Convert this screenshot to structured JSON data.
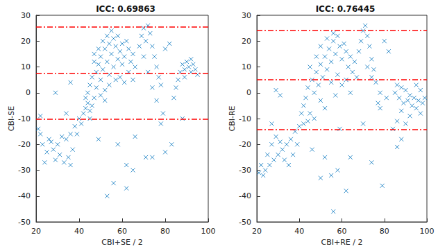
{
  "chart_data": [
    {
      "type": "scatter",
      "title": "ICC: 0.69863",
      "x_label": "CBI+SE / 2",
      "y_label": "CBI-SE",
      "xlim": [
        20,
        100
      ],
      "ylim": [
        -50,
        30
      ],
      "xticks": [
        20,
        40,
        60,
        80,
        100
      ],
      "yticks": [
        -50,
        -40,
        -30,
        -20,
        -10,
        0,
        10,
        20,
        30
      ],
      "grid": false,
      "color": "#0072bd",
      "marker": "x",
      "reference_lines": {
        "values": [
          25.5,
          7.6,
          -10.2
        ],
        "color": "#ff0000",
        "line_style": "dashdot"
      },
      "points": [
        [
          44,
          0
        ],
        [
          45,
          3
        ],
        [
          46,
          6
        ],
        [
          47,
          -2
        ],
        [
          48,
          8
        ],
        [
          48,
          2
        ],
        [
          49,
          11
        ],
        [
          50,
          5
        ],
        [
          50,
          14
        ],
        [
          51,
          9
        ],
        [
          52,
          17
        ],
        [
          52,
          1
        ],
        [
          53,
          12
        ],
        [
          54,
          19
        ],
        [
          54,
          7
        ],
        [
          55,
          15
        ],
        [
          56,
          10
        ],
        [
          56,
          21
        ],
        [
          57,
          18
        ],
        [
          58,
          13
        ],
        [
          58,
          22
        ],
        [
          59,
          16
        ],
        [
          60,
          19
        ],
        [
          60,
          11
        ],
        [
          61,
          14
        ],
        [
          62,
          20
        ],
        [
          63,
          17
        ],
        [
          64,
          12
        ],
        [
          65,
          15
        ],
        [
          66,
          10
        ],
        [
          47,
          12
        ],
        [
          49,
          17
        ],
        [
          51,
          20
        ],
        [
          53,
          22
        ],
        [
          55,
          24
        ],
        [
          46,
          -5
        ],
        [
          45,
          -7
        ],
        [
          44,
          -4
        ],
        [
          43,
          -6
        ],
        [
          42,
          -8
        ],
        [
          43,
          -2
        ],
        [
          47,
          15
        ],
        [
          50,
          -1
        ],
        [
          52,
          -3
        ],
        [
          54,
          3
        ],
        [
          57,
          5
        ],
        [
          59,
          6
        ],
        [
          61,
          4
        ],
        [
          63,
          8
        ],
        [
          65,
          5
        ],
        [
          68,
          18
        ],
        [
          69,
          22
        ],
        [
          70,
          25
        ],
        [
          71,
          20
        ],
        [
          72,
          26
        ],
        [
          73,
          23
        ],
        [
          74,
          18
        ],
        [
          75,
          14
        ],
        [
          76,
          10
        ],
        [
          77,
          6
        ],
        [
          78,
          3
        ],
        [
          70,
          14
        ],
        [
          72,
          8
        ],
        [
          74,
          2
        ],
        [
          76,
          -3
        ],
        [
          79,
          -8
        ],
        [
          80,
          17
        ],
        [
          82,
          19
        ],
        [
          86,
          5
        ],
        [
          87,
          8
        ],
        [
          88,
          11
        ],
        [
          89,
          9
        ],
        [
          90,
          12
        ],
        [
          91,
          10
        ],
        [
          92,
          8
        ],
        [
          93,
          11
        ],
        [
          94,
          9
        ],
        [
          95,
          7
        ],
        [
          92,
          13
        ],
        [
          89,
          6
        ],
        [
          85,
          2
        ],
        [
          84,
          -2
        ],
        [
          40,
          -10
        ],
        [
          38,
          -13
        ],
        [
          36,
          -16
        ],
        [
          34,
          -18
        ],
        [
          32,
          -17
        ],
        [
          30,
          -20
        ],
        [
          28,
          -22
        ],
        [
          27,
          -19
        ],
        [
          25,
          -23
        ],
        [
          24,
          -27
        ],
        [
          23,
          -20
        ],
        [
          22,
          -16
        ],
        [
          21,
          -14
        ],
        [
          22,
          -9
        ],
        [
          26,
          -18
        ],
        [
          29,
          -26
        ],
        [
          33,
          -27
        ],
        [
          35,
          -25
        ],
        [
          37,
          -22
        ],
        [
          39,
          -16
        ],
        [
          41,
          -12
        ],
        [
          36,
          -28
        ],
        [
          31,
          -24
        ],
        [
          29,
          0
        ],
        [
          34,
          -8
        ],
        [
          36,
          4
        ],
        [
          53,
          -40
        ],
        [
          56,
          -35
        ],
        [
          62,
          -28
        ],
        [
          62,
          -37
        ],
        [
          65,
          -30
        ],
        [
          71,
          -25
        ],
        [
          74,
          -25
        ],
        [
          80,
          -23
        ],
        [
          58,
          -20
        ],
        [
          49,
          -18
        ],
        [
          66,
          -17
        ],
        [
          83,
          -20
        ],
        [
          78,
          -12
        ],
        [
          88,
          -10
        ],
        [
          45,
          -10
        ]
      ]
    },
    {
      "type": "scatter",
      "title": "ICC: 0.76445",
      "x_label": "CBI+RE / 2",
      "y_label": "CBI-RE",
      "xlim": [
        20,
        100
      ],
      "ylim": [
        -50,
        30
      ],
      "xticks": [
        20,
        40,
        60,
        80,
        100
      ],
      "yticks": [
        -50,
        -40,
        -30,
        -20,
        -10,
        0,
        10,
        20,
        30
      ],
      "grid": false,
      "color": "#0072bd",
      "marker": "x",
      "reference_lines": {
        "values": [
          24.2,
          5,
          -14.3
        ],
        "color": "#ff0000",
        "line_style": "dashdot"
      },
      "points": [
        [
          42,
          -5
        ],
        [
          43,
          -2
        ],
        [
          44,
          2
        ],
        [
          45,
          -8
        ],
        [
          46,
          5
        ],
        [
          47,
          0
        ],
        [
          48,
          8
        ],
        [
          49,
          3
        ],
        [
          50,
          11
        ],
        [
          51,
          6
        ],
        [
          52,
          14
        ],
        [
          53,
          9
        ],
        [
          54,
          17
        ],
        [
          55,
          12
        ],
        [
          56,
          20
        ],
        [
          57,
          15
        ],
        [
          58,
          22
        ],
        [
          59,
          18
        ],
        [
          60,
          13
        ],
        [
          61,
          19
        ],
        [
          62,
          16
        ],
        [
          63,
          10
        ],
        [
          64,
          14
        ],
        [
          65,
          8
        ],
        [
          66,
          12
        ],
        [
          67,
          6
        ],
        [
          50,
          -3
        ],
        [
          52,
          -6
        ],
        [
          48,
          14
        ],
        [
          50,
          18
        ],
        [
          53,
          21
        ],
        [
          56,
          23
        ],
        [
          45,
          10
        ],
        [
          47,
          -10
        ],
        [
          44,
          -11
        ],
        [
          42,
          -12
        ],
        [
          40,
          -13
        ],
        [
          41,
          -8
        ],
        [
          55,
          4
        ],
        [
          58,
          7
        ],
        [
          60,
          3
        ],
        [
          62,
          5
        ],
        [
          64,
          0
        ],
        [
          57,
          -1
        ],
        [
          68,
          16
        ],
        [
          69,
          20
        ],
        [
          70,
          24
        ],
        [
          71,
          26
        ],
        [
          72,
          22
        ],
        [
          73,
          18
        ],
        [
          74,
          13
        ],
        [
          75,
          9
        ],
        [
          76,
          4
        ],
        [
          78,
          0
        ],
        [
          72,
          10
        ],
        [
          74,
          6
        ],
        [
          77,
          -4
        ],
        [
          80,
          20
        ],
        [
          82,
          16
        ],
        [
          78,
          -6
        ],
        [
          81,
          -2
        ],
        [
          85,
          0
        ],
        [
          86,
          3
        ],
        [
          87,
          -2
        ],
        [
          88,
          2
        ],
        [
          89,
          -4
        ],
        [
          90,
          1
        ],
        [
          91,
          -3
        ],
        [
          92,
          -1
        ],
        [
          93,
          -5
        ],
        [
          94,
          -2
        ],
        [
          95,
          -6
        ],
        [
          96,
          -3
        ],
        [
          97,
          -8
        ],
        [
          98,
          -4
        ],
        [
          99,
          -2
        ],
        [
          92,
          -9
        ],
        [
          88,
          -7
        ],
        [
          86,
          -11
        ],
        [
          90,
          -12
        ],
        [
          84,
          -14
        ],
        [
          95,
          3
        ],
        [
          97,
          1
        ],
        [
          38,
          -15
        ],
        [
          36,
          -18
        ],
        [
          34,
          -20
        ],
        [
          32,
          -22
        ],
        [
          30,
          -24
        ],
        [
          28,
          -26
        ],
        [
          26,
          -28
        ],
        [
          24,
          -30
        ],
        [
          23,
          -32
        ],
        [
          22,
          -28
        ],
        [
          21,
          -31
        ],
        [
          25,
          -24
        ],
        [
          27,
          -20
        ],
        [
          29,
          -17
        ],
        [
          31,
          -19
        ],
        [
          33,
          -26
        ],
        [
          35,
          -28
        ],
        [
          37,
          -24
        ],
        [
          39,
          -20
        ],
        [
          29,
          1
        ],
        [
          31,
          -1
        ],
        [
          27,
          -12
        ],
        [
          56,
          -46
        ],
        [
          50,
          -33
        ],
        [
          55,
          -32
        ],
        [
          58,
          -30
        ],
        [
          62,
          -38
        ],
        [
          64,
          -25
        ],
        [
          52,
          -25
        ],
        [
          74,
          -27
        ],
        [
          79,
          -36
        ],
        [
          86,
          -21
        ],
        [
          88,
          -18
        ],
        [
          46,
          -22
        ],
        [
          59,
          -14
        ],
        [
          70,
          -12
        ]
      ]
    }
  ]
}
